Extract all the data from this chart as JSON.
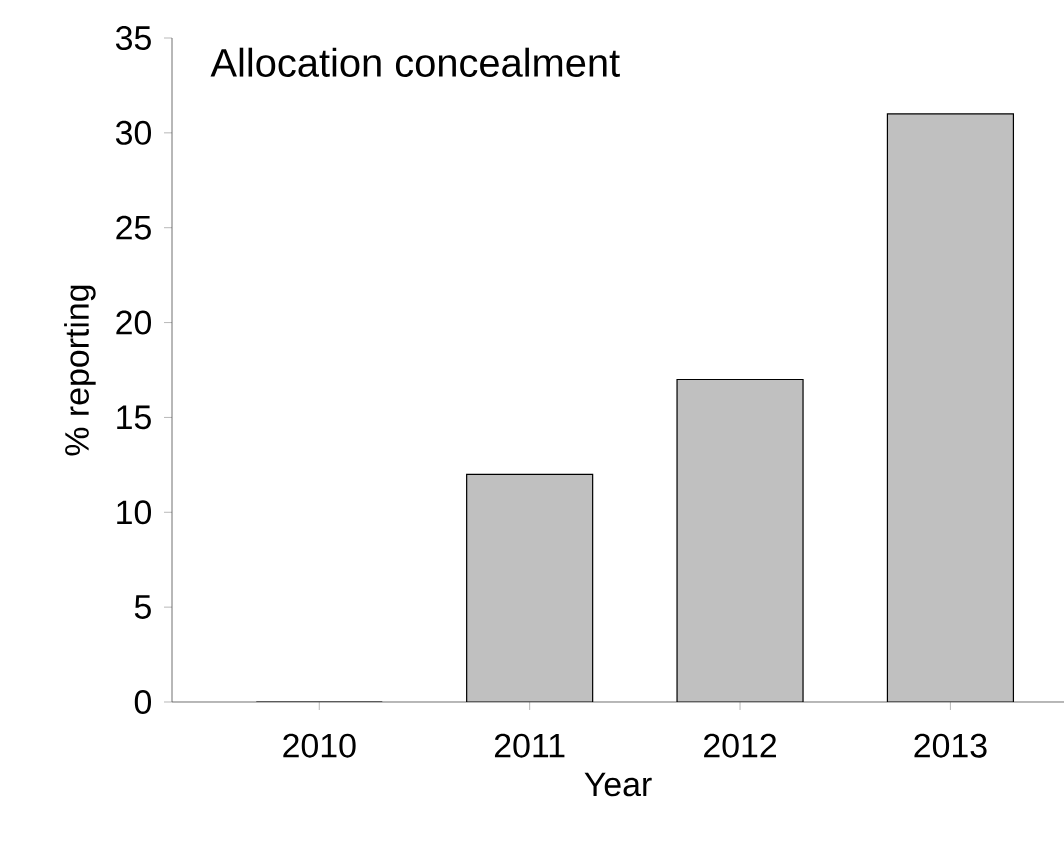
{
  "chart_data": {
    "type": "bar",
    "title": "Allocation concealment",
    "xlabel": "Year",
    "ylabel": "% reporting",
    "categories": [
      "2010",
      "2011",
      "2012",
      "2013"
    ],
    "values": [
      0,
      12,
      17,
      31
    ],
    "color": "#c0c0c0",
    "ylim": [
      0,
      35
    ],
    "yticks": [
      0,
      5,
      10,
      15,
      20,
      25,
      30,
      35
    ],
    "grid": false
  }
}
